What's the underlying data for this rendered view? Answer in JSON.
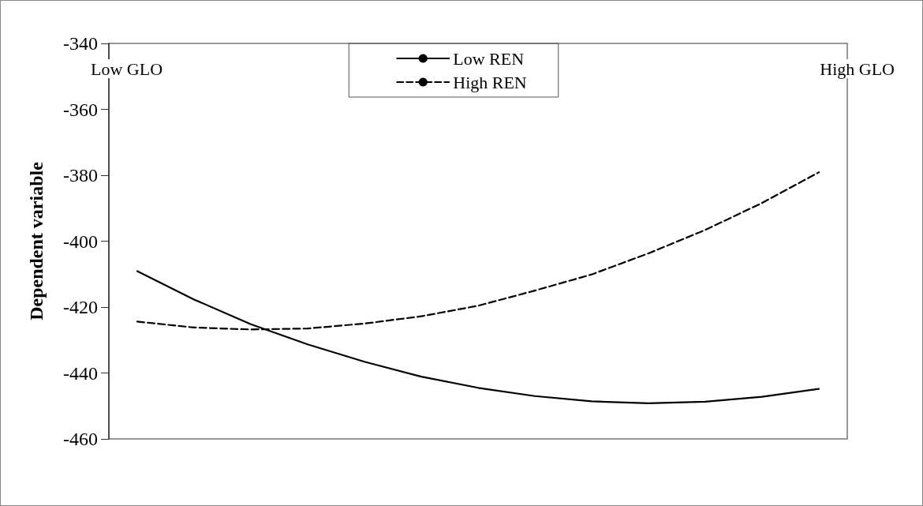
{
  "chart_data": {
    "type": "line",
    "ylabel": "Dependent variable",
    "categories": [
      null,
      null,
      null,
      null,
      null,
      null,
      null,
      null,
      null,
      null,
      null,
      null,
      null
    ],
    "series": [
      {
        "name": "Low REN",
        "color": "#000000",
        "line_style": "solid",
        "values": [
          -409.1,
          -417.7,
          -425.2,
          -431.3,
          -436.6,
          -441.1,
          -444.5,
          -447.0,
          -448.6,
          -449.2,
          -448.7,
          -447.2,
          -444.8
        ]
      },
      {
        "name": "High REN",
        "color": "#000000",
        "line_style": "dashed",
        "values": [
          -424.4,
          -426.2,
          -426.8,
          -426.5,
          -425.0,
          -422.8,
          -419.6,
          -415.0,
          -410.1,
          -403.7,
          -396.6,
          -388.4,
          -379.1
        ]
      }
    ],
    "ylim": [
      -460,
      -340
    ],
    "yticks": [
      -460,
      -440,
      -420,
      -400,
      -380,
      -360,
      -340
    ],
    "annotations": [
      "Low GLO",
      "High GLO"
    ],
    "legend": "top",
    "marker": "none",
    "grid": false
  }
}
